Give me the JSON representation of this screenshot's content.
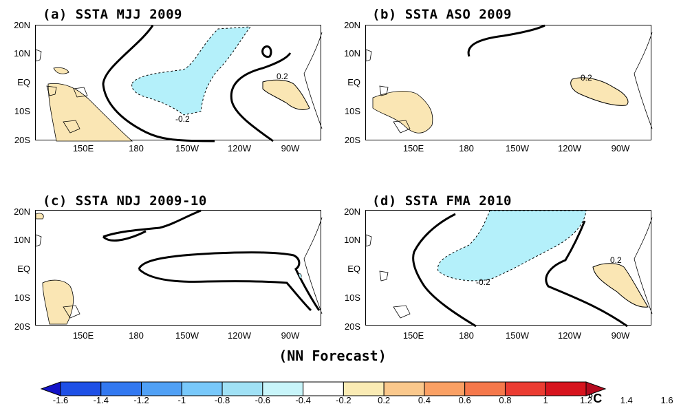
{
  "panels": [
    {
      "id": "a",
      "title": "(a) SSTA MJJ 2009"
    },
    {
      "id": "b",
      "title": "(b) SSTA ASO 2009"
    },
    {
      "id": "c",
      "title": "(c) SSTA NDJ 2009-10"
    },
    {
      "id": "d",
      "title": "(d) SSTA FMA 2010"
    }
  ],
  "lat_labels": [
    "20N",
    "10N",
    "EQ",
    "10S",
    "20S"
  ],
  "lon_labels": [
    "150E",
    "180",
    "150W",
    "120W",
    "90W"
  ],
  "contour_labels": {
    "neg": "-0.2",
    "pos": "0.2"
  },
  "footer": "(NN Forecast)",
  "colorbar": {
    "ticks": [
      "-1.6",
      "-1.4",
      "-1.2",
      "-1",
      "-0.8",
      "-0.6",
      "-0.4",
      "-0.2",
      "0.2",
      "0.4",
      "0.6",
      "0.8",
      "1",
      "1.2",
      "1.4",
      "1.6"
    ],
    "colors": [
      "#1414c8",
      "#1e50e6",
      "#3278f0",
      "#50a0f5",
      "#78c8fa",
      "#a0e1f5",
      "#c8f5fa",
      "#ffffff",
      "#faebb4",
      "#fac88c",
      "#faa064",
      "#f5784b",
      "#eb3c32",
      "#d7141e",
      "#b40a1e"
    ],
    "unit": "°C"
  },
  "legend_colors": {
    "negative_fill": "#b4f0fa",
    "positive_fill": "#fae6b4",
    "land_fill": "#faebbe"
  }
}
